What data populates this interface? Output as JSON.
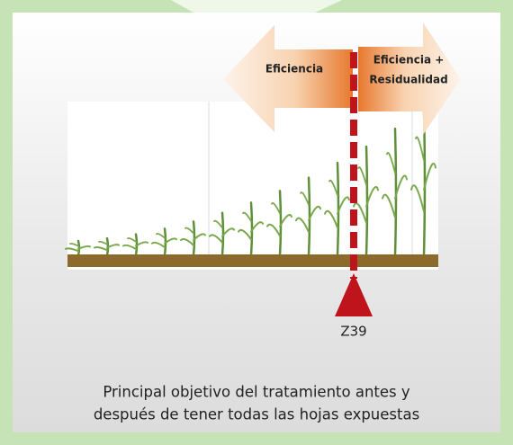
{
  "arrows": {
    "left": {
      "label": "Eficiencia"
    },
    "right": {
      "label_lines": [
        "Eficiencia +",
        "Residualidad"
      ]
    }
  },
  "marker": {
    "label": "Z39"
  },
  "caption": {
    "lines": [
      "Principal objetivo del tratamiento antes y",
      "después de tener todas las hojas expuestas"
    ]
  }
}
